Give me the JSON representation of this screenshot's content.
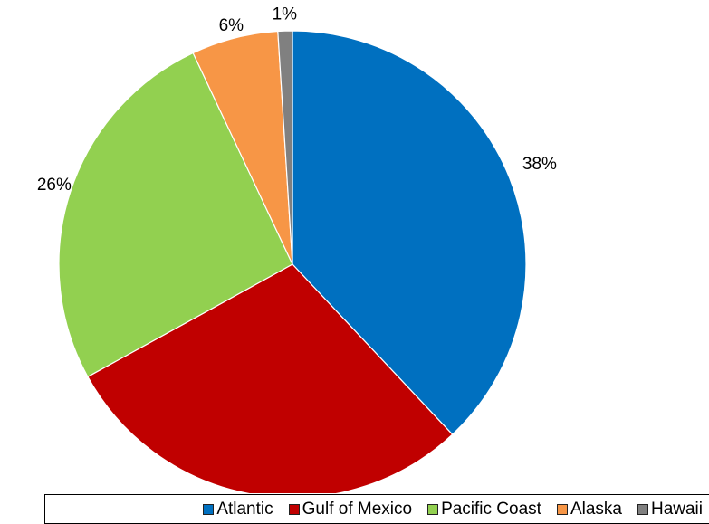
{
  "chart_data": {
    "type": "pie",
    "title": "",
    "categories": [
      "Atlantic",
      "Gulf of Mexico",
      "Pacific Coast",
      "Alaska",
      "Hawaii"
    ],
    "values": [
      38,
      29,
      26,
      6,
      1
    ],
    "labels": [
      "38%",
      "",
      "26%",
      "6%",
      "1%"
    ],
    "colors": [
      "#0070C0",
      "#C00000",
      "#92D050",
      "#F79646",
      "#808080"
    ],
    "legend_position": "bottom",
    "start_angle": "12 o'clock",
    "direction": "clockwise"
  }
}
